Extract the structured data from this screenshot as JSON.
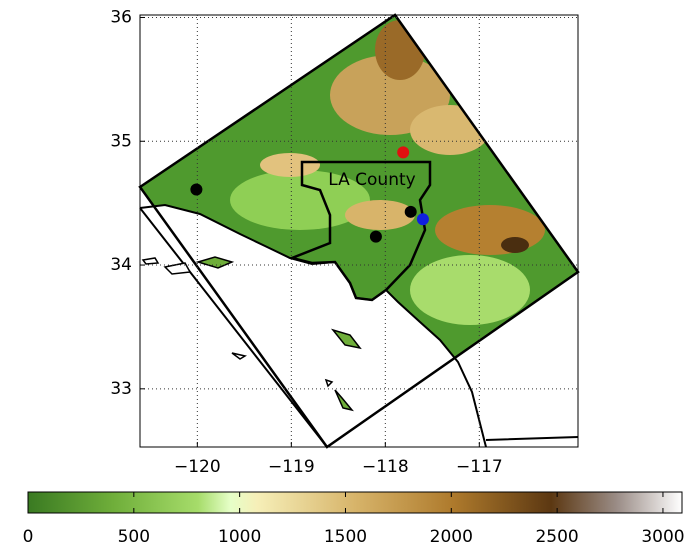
{
  "chart_data": {
    "type": "map",
    "xlim": [
      -120.61,
      -115.95
    ],
    "ylim": [
      32.53,
      36.02
    ],
    "xticks": [
      {
        "value": -120,
        "label": "−120"
      },
      {
        "value": -119,
        "label": "−119"
      },
      {
        "value": -118,
        "label": "−118"
      },
      {
        "value": -117,
        "label": "−117"
      }
    ],
    "yticks": [
      33,
      34,
      35,
      36
    ],
    "grid": true,
    "annotation": "LA County",
    "points": [
      {
        "x": -120.01,
        "y": 34.61,
        "color": "#000000"
      },
      {
        "x": -117.81,
        "y": 34.91,
        "color": "#e01010"
      },
      {
        "x": -117.73,
        "y": 34.43,
        "color": "#000000"
      },
      {
        "x": -117.6,
        "y": 34.37,
        "color": "#1020e0"
      },
      {
        "x": -118.1,
        "y": 34.23,
        "color": "#000000"
      }
    ],
    "colorbar": {
      "clim": [
        0,
        3090
      ],
      "ticks": [
        0,
        500,
        1000,
        1500,
        2000,
        2500,
        3000
      ]
    }
  }
}
